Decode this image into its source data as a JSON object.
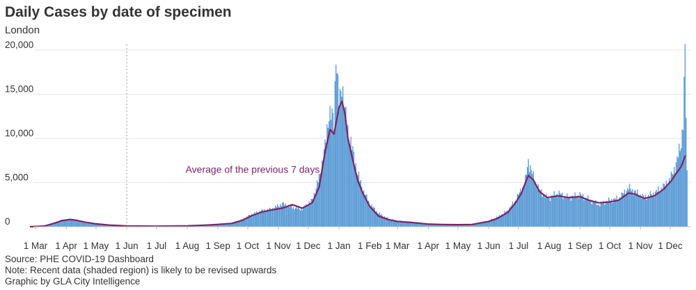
{
  "header": {
    "title": "Daily Cases by date of specimen",
    "subtitle": "London"
  },
  "footer": {
    "source": "Source: PHE COVID-19 Dashboard",
    "note": "Note: Recent data (shaded region) is likely to be revised upwards",
    "credit": "Graphic by GLA City Intelligence"
  },
  "colors": {
    "bars": "#5b9bd5",
    "bars_recent": "#a9c8e8",
    "average_line": "#7b2366",
    "gridline": "#e6e6e6",
    "text": "#333333"
  },
  "chart_data": {
    "type": "bar",
    "title": "Daily Cases by date of specimen",
    "subtitle": "London",
    "y_ticks": [
      0,
      5000,
      10000,
      15000,
      20000
    ],
    "y_tick_labels": [
      "0",
      "5,000",
      "10,000",
      "15,000",
      "20,000"
    ],
    "ylim": [
      0,
      20000
    ],
    "x_tick_labels": [
      "1 Mar",
      "1 Apr",
      "1 May",
      "1 Jun",
      "1 Jul",
      "1 Aug",
      "1 Sep",
      "1 Oct",
      "1 Nov",
      "1 Dec",
      "1 Jan",
      "1 Feb",
      "1 Mar",
      "1 Apr",
      "1 May",
      "1 Jun",
      "1 Jul",
      "1 Aug",
      "1 Sep",
      "1 Oct",
      "1 Nov",
      "1 Dec"
    ],
    "x_ticks": [
      "2020-03-01",
      "2020-04-01",
      "2020-05-01",
      "2020-06-01",
      "2020-07-01",
      "2020-08-01",
      "2020-09-01",
      "2020-10-01",
      "2020-11-01",
      "2020-12-01",
      "2021-01-01",
      "2021-02-01",
      "2021-03-01",
      "2021-04-01",
      "2021-05-01",
      "2021-06-01",
      "2021-07-01",
      "2021-08-01",
      "2021-09-01",
      "2021-10-01",
      "2021-11-01",
      "2021-12-01"
    ],
    "x_range": [
      "2020-02-01",
      "2021-12-18"
    ],
    "recent_region_start": "2020-06-01",
    "grid": true,
    "annotation": "Average of the previous 7 days",
    "series": [
      {
        "name": "Daily cases",
        "kind": "bar",
        "points": [
          [
            "2020-02-20",
            0
          ],
          [
            "2020-03-01",
            5
          ],
          [
            "2020-03-10",
            100
          ],
          [
            "2020-03-20",
            450
          ],
          [
            "2020-03-28",
            750
          ],
          [
            "2020-04-05",
            820
          ],
          [
            "2020-04-12",
            700
          ],
          [
            "2020-04-20",
            480
          ],
          [
            "2020-04-30",
            300
          ],
          [
            "2020-05-15",
            170
          ],
          [
            "2020-06-01",
            90
          ],
          [
            "2020-07-01",
            70
          ],
          [
            "2020-08-01",
            110
          ],
          [
            "2020-08-20",
            190
          ],
          [
            "2020-09-01",
            300
          ],
          [
            "2020-09-15",
            420
          ],
          [
            "2020-09-25",
            800
          ],
          [
            "2020-10-05",
            1400
          ],
          [
            "2020-10-15",
            1800
          ],
          [
            "2020-10-25",
            2000
          ],
          [
            "2020-11-05",
            2600
          ],
          [
            "2020-11-15",
            2200
          ],
          [
            "2020-11-25",
            2000
          ],
          [
            "2020-12-05",
            3000
          ],
          [
            "2020-12-12",
            5500
          ],
          [
            "2020-12-18",
            9000
          ],
          [
            "2020-12-22",
            13000
          ],
          [
            "2020-12-27",
            12000
          ],
          [
            "2020-12-29",
            20000
          ],
          [
            "2021-01-01",
            13500
          ],
          [
            "2021-01-04",
            16500
          ],
          [
            "2021-01-07",
            13000
          ],
          [
            "2021-01-10",
            11000
          ],
          [
            "2021-01-15",
            8500
          ],
          [
            "2021-01-20",
            6000
          ],
          [
            "2021-01-25",
            4200
          ],
          [
            "2021-02-01",
            2600
          ],
          [
            "2021-02-10",
            1500
          ],
          [
            "2021-02-20",
            900
          ],
          [
            "2021-03-01",
            650
          ],
          [
            "2021-03-15",
            500
          ],
          [
            "2021-04-01",
            300
          ],
          [
            "2021-04-15",
            260
          ],
          [
            "2021-05-01",
            240
          ],
          [
            "2021-05-15",
            260
          ],
          [
            "2021-06-01",
            700
          ],
          [
            "2021-06-10",
            1100
          ],
          [
            "2021-06-20",
            1800
          ],
          [
            "2021-06-28",
            3000
          ],
          [
            "2021-07-04",
            4200
          ],
          [
            "2021-07-08",
            5200
          ],
          [
            "2021-07-11",
            7500
          ],
          [
            "2021-07-16",
            5600
          ],
          [
            "2021-07-22",
            4200
          ],
          [
            "2021-07-30",
            3200
          ],
          [
            "2021-08-10",
            3800
          ],
          [
            "2021-08-20",
            3300
          ],
          [
            "2021-09-01",
            3600
          ],
          [
            "2021-09-10",
            3100
          ],
          [
            "2021-09-20",
            2500
          ],
          [
            "2021-10-01",
            3000
          ],
          [
            "2021-10-10",
            3200
          ],
          [
            "2021-10-20",
            4400
          ],
          [
            "2021-10-26",
            4000
          ],
          [
            "2021-11-05",
            3300
          ],
          [
            "2021-11-15",
            3800
          ],
          [
            "2021-11-25",
            4600
          ],
          [
            "2021-12-02",
            5600
          ],
          [
            "2021-12-08",
            7500
          ],
          [
            "2021-12-12",
            9500
          ],
          [
            "2021-12-14",
            12000
          ],
          [
            "2021-12-16",
            19500
          ],
          [
            "2021-12-18",
            6000
          ]
        ]
      },
      {
        "name": "Average of the previous 7 days",
        "kind": "line",
        "points": [
          [
            "2020-02-25",
            0
          ],
          [
            "2020-03-10",
            80
          ],
          [
            "2020-03-20",
            400
          ],
          [
            "2020-03-28",
            700
          ],
          [
            "2020-04-05",
            820
          ],
          [
            "2020-04-12",
            720
          ],
          [
            "2020-04-20",
            520
          ],
          [
            "2020-05-01",
            320
          ],
          [
            "2020-05-15",
            180
          ],
          [
            "2020-06-01",
            90
          ],
          [
            "2020-07-01",
            65
          ],
          [
            "2020-08-01",
            100
          ],
          [
            "2020-08-20",
            180
          ],
          [
            "2020-09-01",
            260
          ],
          [
            "2020-09-15",
            380
          ],
          [
            "2020-09-25",
            700
          ],
          [
            "2020-10-05",
            1250
          ],
          [
            "2020-10-15",
            1650
          ],
          [
            "2020-10-25",
            1900
          ],
          [
            "2020-11-05",
            2100
          ],
          [
            "2020-11-15",
            2500
          ],
          [
            "2020-11-25",
            2100
          ],
          [
            "2020-12-05",
            2700
          ],
          [
            "2020-12-12",
            4500
          ],
          [
            "2020-12-18",
            8500
          ],
          [
            "2020-12-23",
            11000
          ],
          [
            "2020-12-27",
            10500
          ],
          [
            "2021-01-01",
            13500
          ],
          [
            "2021-01-04",
            14200
          ],
          [
            "2021-01-07",
            12800
          ],
          [
            "2021-01-10",
            10000
          ],
          [
            "2021-01-15",
            7500
          ],
          [
            "2021-01-20",
            5200
          ],
          [
            "2021-01-25",
            3800
          ],
          [
            "2021-02-01",
            2300
          ],
          [
            "2021-02-10",
            1200
          ],
          [
            "2021-02-20",
            800
          ],
          [
            "2021-03-01",
            600
          ],
          [
            "2021-03-15",
            480
          ],
          [
            "2021-04-01",
            300
          ],
          [
            "2021-04-15",
            250
          ],
          [
            "2021-05-01",
            230
          ],
          [
            "2021-05-15",
            250
          ],
          [
            "2021-06-01",
            600
          ],
          [
            "2021-06-10",
            950
          ],
          [
            "2021-06-20",
            1600
          ],
          [
            "2021-06-28",
            2700
          ],
          [
            "2021-07-04",
            3800
          ],
          [
            "2021-07-08",
            5000
          ],
          [
            "2021-07-11",
            5800
          ],
          [
            "2021-07-16",
            5300
          ],
          [
            "2021-07-22",
            4000
          ],
          [
            "2021-07-30",
            3300
          ],
          [
            "2021-08-10",
            3500
          ],
          [
            "2021-08-20",
            3300
          ],
          [
            "2021-09-01",
            3400
          ],
          [
            "2021-09-10",
            3000
          ],
          [
            "2021-09-20",
            2700
          ],
          [
            "2021-10-01",
            2800
          ],
          [
            "2021-10-10",
            3000
          ],
          [
            "2021-10-20",
            3800
          ],
          [
            "2021-10-26",
            3700
          ],
          [
            "2021-11-05",
            3200
          ],
          [
            "2021-11-15",
            3500
          ],
          [
            "2021-11-25",
            4300
          ],
          [
            "2021-12-02",
            5200
          ],
          [
            "2021-12-08",
            6200
          ],
          [
            "2021-12-12",
            6800
          ],
          [
            "2021-12-16",
            8000
          ]
        ]
      }
    ]
  }
}
